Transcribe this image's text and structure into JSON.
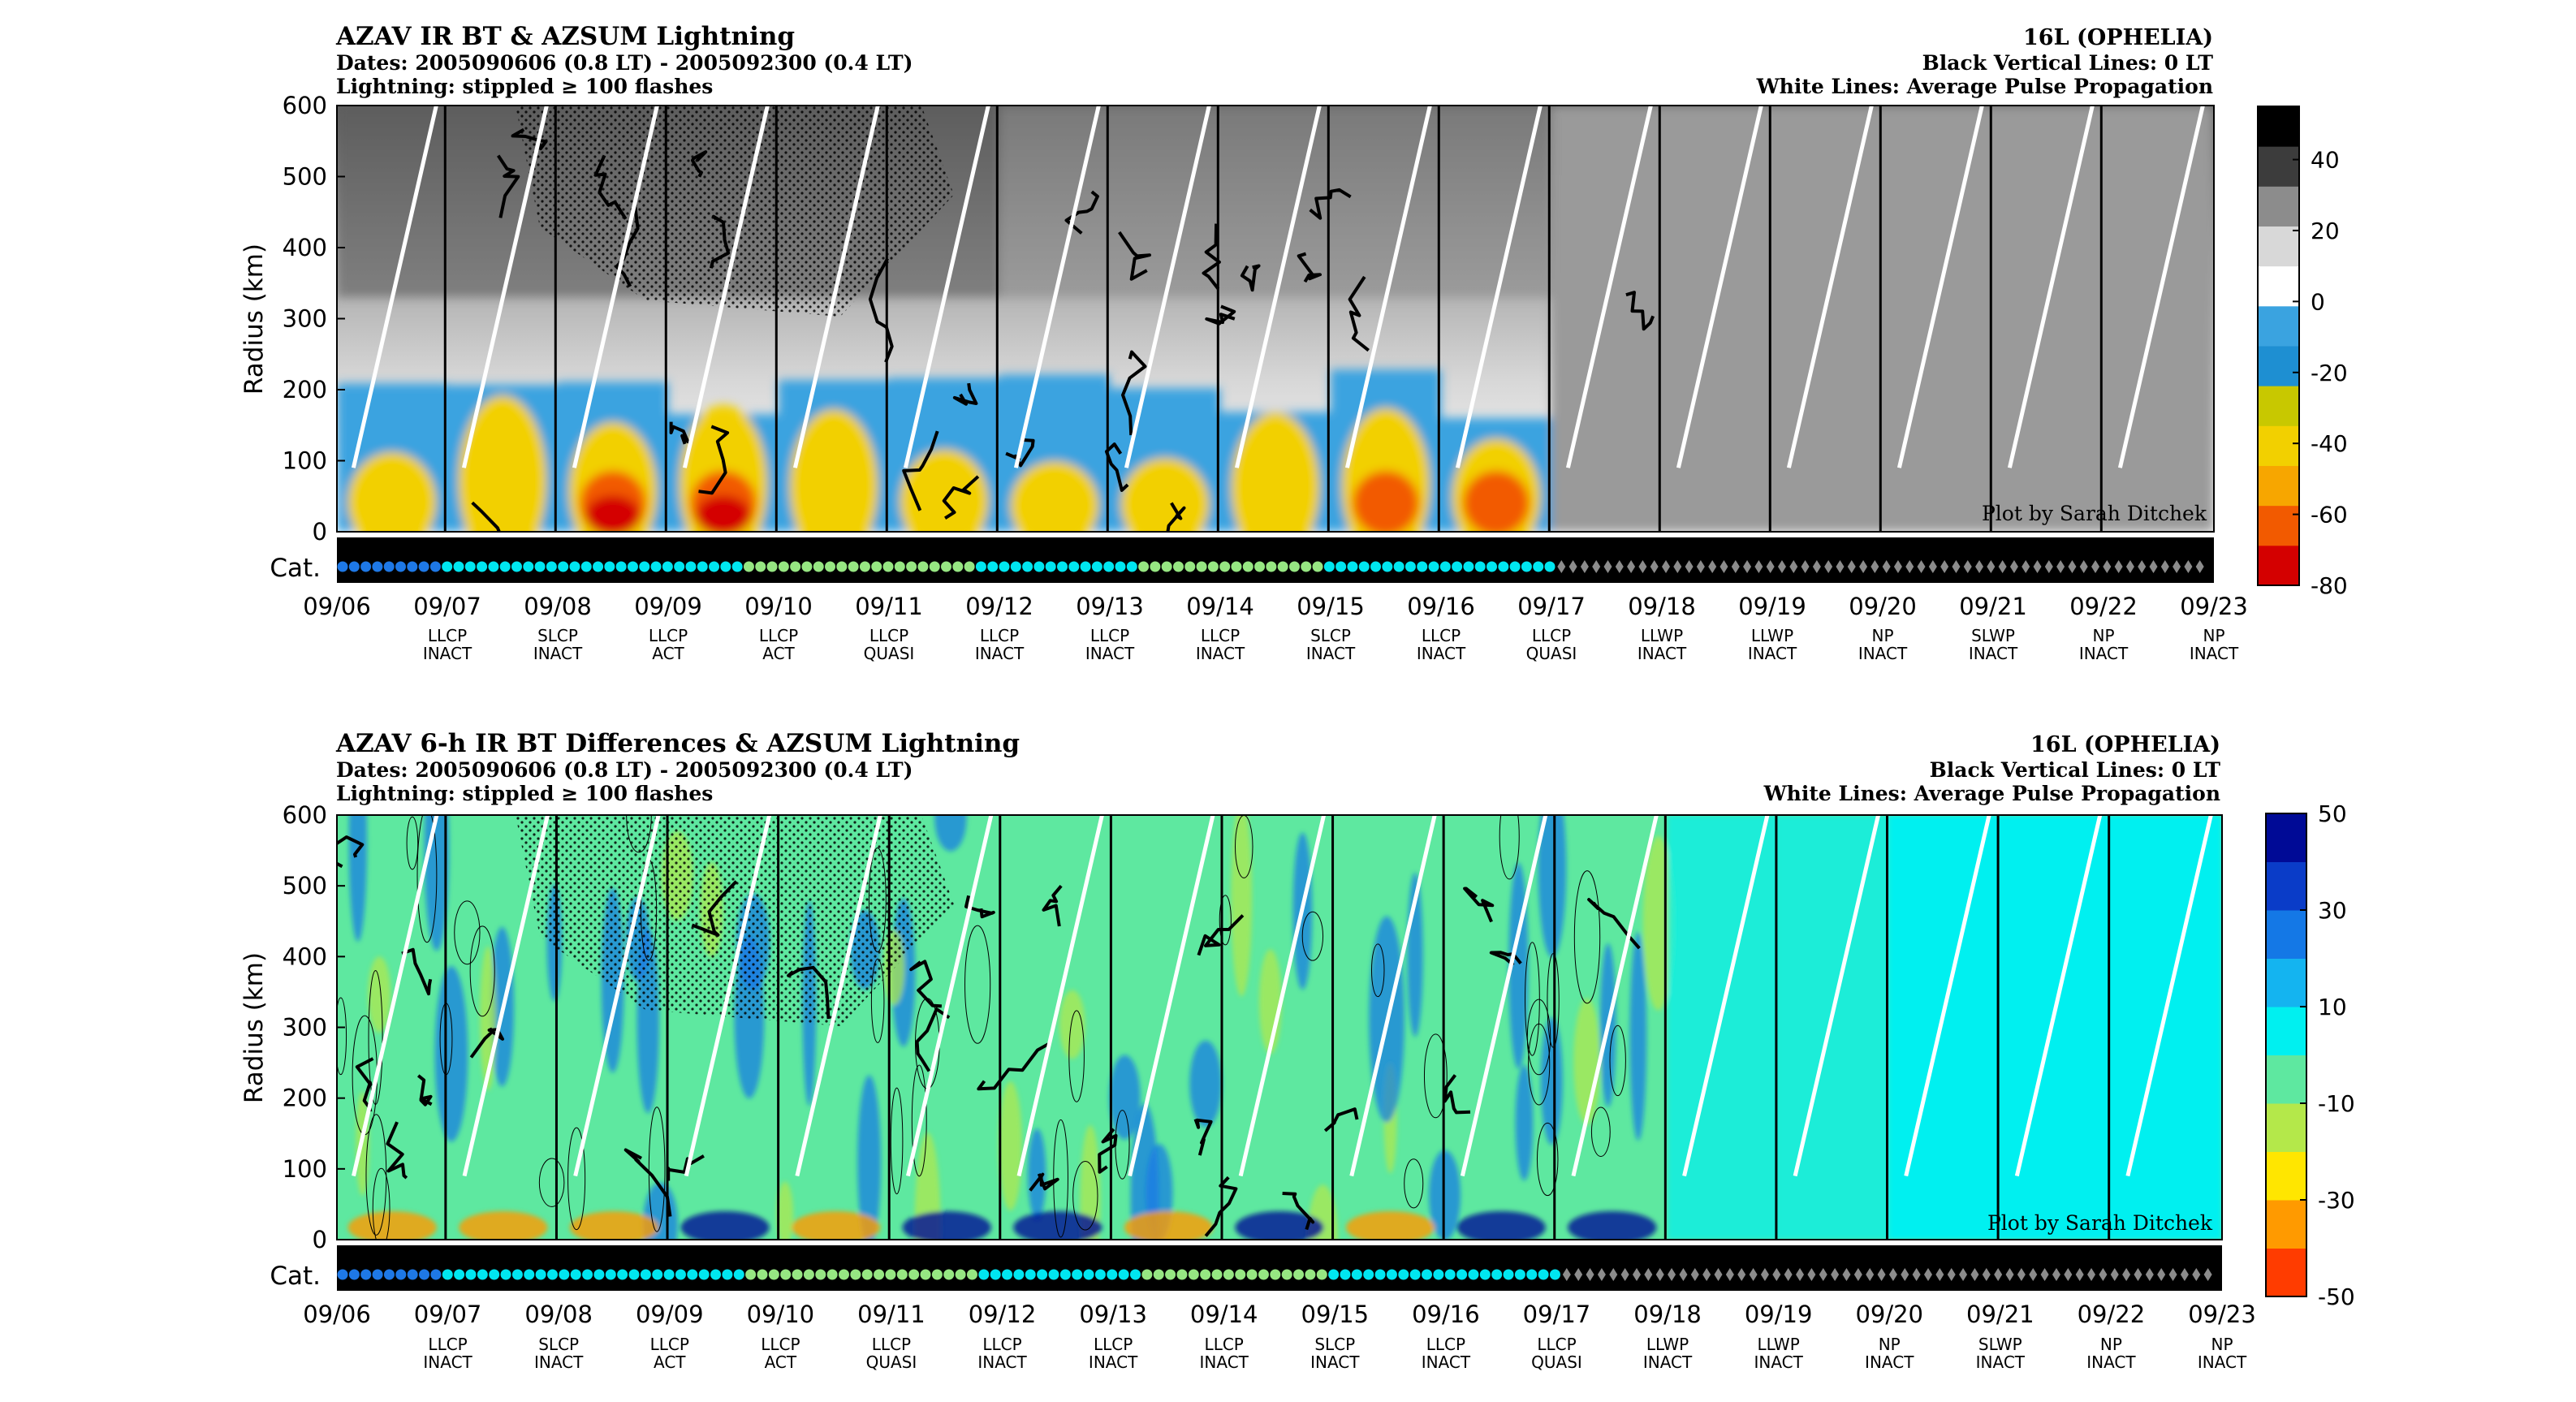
{
  "chart_data": [
    {
      "type": "heatmap",
      "id": "top",
      "title_lines": [
        "AZAV IR BT & AZSUM Lightning",
        "Dates: 2005090606 (0.8 LT) - 2005092300 (0.4 LT)",
        "Lightning: stippled ≥ 100 flashes"
      ],
      "title_right_lines": [
        "16L (OPHELIA)",
        "Black Vertical Lines: 0 LT",
        "White Lines: Average Pulse Propagation"
      ],
      "ylabel": "Radius (km)",
      "yticks": [
        "0",
        "100",
        "200",
        "300",
        "400",
        "500",
        "600"
      ],
      "ylim": [
        0,
        600
      ],
      "credit": "Plot by Sarah Ditchek",
      "cat_label": "Cat.",
      "colorbar": {
        "ticks": [
          "40",
          "20",
          "0",
          "-20",
          "-40",
          "-60",
          "-80"
        ],
        "range": [
          -80,
          55
        ],
        "colors": [
          "#d40000",
          "#f25a00",
          "#f7a600",
          "#f2d000",
          "#c8c800",
          "#1e8fd2",
          "#3aa3e0",
          "#ffffff",
          "#d8d8d8",
          "#8c8c8c",
          "#3c3c3c",
          "#000000"
        ]
      }
    },
    {
      "type": "heatmap",
      "id": "bottom",
      "title_lines": [
        "AZAV 6-h IR BT Differences & AZSUM Lightning",
        "Dates: 2005090606 (0.8 LT) - 2005092300 (0.4 LT)",
        "Lightning: stippled ≥ 100 flashes"
      ],
      "title_right_lines": [
        "16L (OPHELIA)",
        "Black Vertical Lines: 0 LT",
        "White Lines: Average Pulse Propagation"
      ],
      "ylabel": "Radius (km)",
      "yticks": [
        "0",
        "100",
        "200",
        "300",
        "400",
        "500",
        "600"
      ],
      "ylim": [
        0,
        600
      ],
      "credit": "Plot by Sarah Ditchek",
      "cat_label": "Cat.",
      "colorbar": {
        "ticks": [
          "50",
          "30",
          "10",
          "-10",
          "-30",
          "-50"
        ],
        "range": [
          -50,
          50
        ],
        "colors": [
          "#ff3c00",
          "#ff9a00",
          "#ffe600",
          "#b4e84a",
          "#5ee8a0",
          "#00f0f0",
          "#14b4f0",
          "#1478e6",
          "#0a3cc8",
          "#000a96"
        ]
      }
    }
  ],
  "x_axis": {
    "dates": [
      "09/06",
      "09/07",
      "09/08",
      "09/09",
      "09/10",
      "09/11",
      "09/12",
      "09/13",
      "09/14",
      "09/15",
      "09/16",
      "09/17",
      "09/18",
      "09/19",
      "09/20",
      "09/21",
      "09/22",
      "09/23"
    ],
    "pulse_type": [
      "",
      "LLCP",
      "SLCP",
      "LLCP",
      "LLCP",
      "LLCP",
      "LLCP",
      "LLCP",
      "LLCP",
      "SLCP",
      "LLCP",
      "LLCP",
      "LLWP",
      "LLWP",
      "NP",
      "SLWP",
      "NP",
      "NP"
    ],
    "pulse_state": [
      "",
      "INACT",
      "INACT",
      "ACT",
      "ACT",
      "QUASI",
      "INACT",
      "INACT",
      "INACT",
      "INACT",
      "INACT",
      "QUASI",
      "INACT",
      "INACT",
      "INACT",
      "INACT",
      "INACT",
      "INACT"
    ]
  },
  "category_strip": {
    "colors": {
      "TD": "#1e78e6",
      "TS": "#00e6f0",
      "C1": "#96e682",
      "EXT": "#8c8c8c"
    },
    "segments": [
      {
        "cat": "TD",
        "count": 9
      },
      {
        "cat": "TS",
        "count": 26
      },
      {
        "cat": "C1",
        "count": 20
      },
      {
        "cat": "TS",
        "count": 14
      },
      {
        "cat": "C1",
        "count": 16
      },
      {
        "cat": "TS",
        "count": 20
      },
      {
        "cat": "EXT",
        "count": 56
      }
    ]
  }
}
